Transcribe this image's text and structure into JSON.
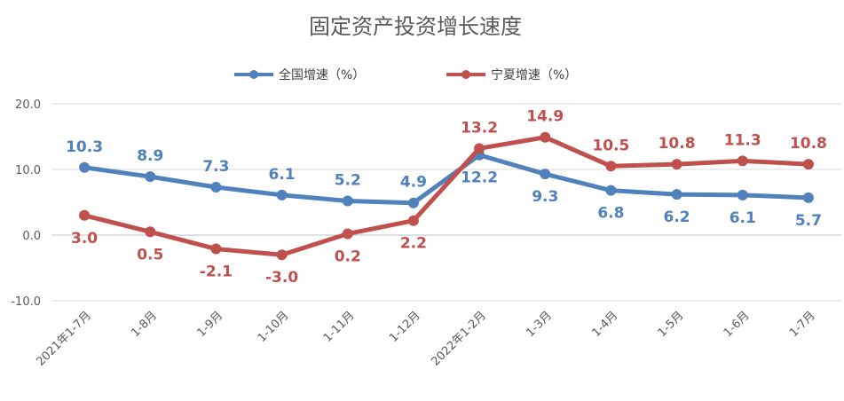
{
  "chart_data": {
    "type": "line",
    "title": "固定资产投资增长速度",
    "categories": [
      "2021年1-7月",
      "1-8月",
      "1-9月",
      "1-10月",
      "1-11月",
      "1-12月",
      "2022年1-2月",
      "1-3月",
      "1-4月",
      "1-5月",
      "1-6月",
      "1-7月"
    ],
    "series": [
      {
        "name": "全国增速（%）",
        "color": "#4f81bd",
        "values": [
          10.3,
          8.9,
          7.3,
          6.1,
          5.2,
          4.9,
          12.2,
          9.3,
          6.8,
          6.2,
          6.1,
          5.7
        ],
        "labels": [
          "10.3",
          "8.9",
          "7.3",
          "6.1",
          "5.2",
          "4.9",
          "12.2",
          "9.3",
          "6.8",
          "6.2",
          "6.1",
          "5.7"
        ]
      },
      {
        "name": "宁夏增速（%）",
        "color": "#c0504d",
        "values": [
          3.0,
          0.5,
          -2.1,
          -3.0,
          0.2,
          2.2,
          13.2,
          14.9,
          10.5,
          10.8,
          11.3,
          10.8
        ],
        "labels": [
          "3.0",
          "0.5",
          "-2.1",
          "-3.0",
          "0.2",
          "2.2",
          "13.2",
          "14.9",
          "10.5",
          "10.8",
          "11.3",
          "10.8"
        ]
      }
    ],
    "ylim": [
      -10,
      20
    ],
    "yticks": [
      "-10.0",
      "0.0",
      "10.0",
      "20.0"
    ],
    "grid": true,
    "legend": "top-center"
  }
}
